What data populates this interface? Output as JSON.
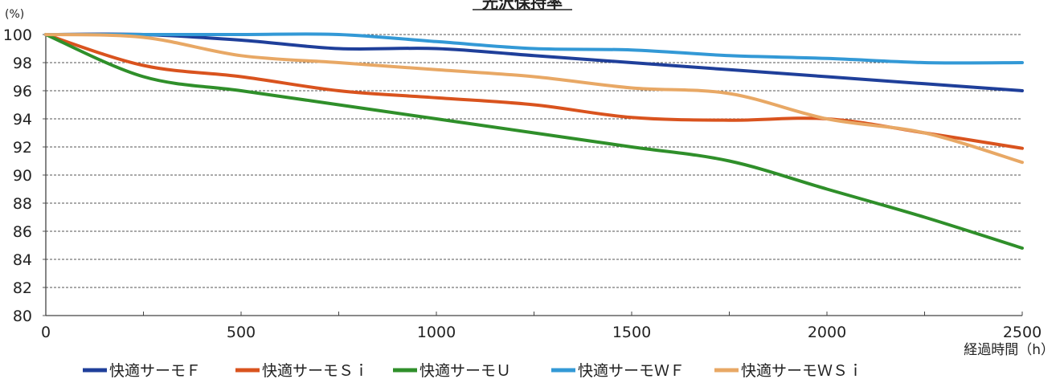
{
  "chart_data": {
    "type": "line",
    "title": "光沢保持率",
    "ylabel": "(%)",
    "xlabel": "経過時間（h）",
    "xlim": [
      0,
      2500
    ],
    "ylim": [
      80,
      100
    ],
    "x_ticks": [
      0,
      500,
      1000,
      1500,
      2000,
      2500
    ],
    "y_ticks": [
      80,
      82,
      84,
      86,
      88,
      90,
      92,
      94,
      96,
      98,
      100
    ],
    "grid": "horizontal-dashed",
    "legend_position": "bottom",
    "series": [
      {
        "name": "快適サーモＦ",
        "color": "#1f3f9a",
        "points": [
          [
            0,
            100
          ],
          [
            250,
            100
          ],
          [
            500,
            99.6
          ],
          [
            750,
            99.0
          ],
          [
            1000,
            99.0
          ],
          [
            1250,
            98.5
          ],
          [
            1500,
            98.0
          ],
          [
            1750,
            97.5
          ],
          [
            2000,
            97.0
          ],
          [
            2250,
            96.5
          ],
          [
            2500,
            96.0
          ]
        ]
      },
      {
        "name": "快適サーモＳｉ",
        "color": "#d9531e",
        "points": [
          [
            0,
            100
          ],
          [
            250,
            97.8
          ],
          [
            500,
            97.0
          ],
          [
            750,
            96.0
          ],
          [
            1000,
            95.5
          ],
          [
            1250,
            95.0
          ],
          [
            1500,
            94.1
          ],
          [
            1750,
            93.9
          ],
          [
            2000,
            94.0
          ],
          [
            2250,
            93.0
          ],
          [
            2500,
            91.9
          ]
        ]
      },
      {
        "name": "快適サーモＵ",
        "color": "#2f8f2a",
        "points": [
          [
            0,
            100
          ],
          [
            250,
            97.0
          ],
          [
            500,
            96.0
          ],
          [
            750,
            95.0
          ],
          [
            1000,
            94.0
          ],
          [
            1250,
            93.0
          ],
          [
            1500,
            92.0
          ],
          [
            1750,
            91.0
          ],
          [
            2000,
            89.0
          ],
          [
            2250,
            87.0
          ],
          [
            2500,
            84.8
          ]
        ]
      },
      {
        "name": "快適サーモＷＦ",
        "color": "#3399d6",
        "points": [
          [
            0,
            100
          ],
          [
            250,
            100
          ],
          [
            500,
            100
          ],
          [
            750,
            100
          ],
          [
            1000,
            99.5
          ],
          [
            1250,
            99.0
          ],
          [
            1500,
            98.9
          ],
          [
            1750,
            98.5
          ],
          [
            2000,
            98.3
          ],
          [
            2250,
            98.0
          ],
          [
            2500,
            98.0
          ]
        ]
      },
      {
        "name": "快適サーモＷＳｉ",
        "color": "#e8a865",
        "points": [
          [
            0,
            100
          ],
          [
            250,
            99.8
          ],
          [
            500,
            98.5
          ],
          [
            750,
            98.0
          ],
          [
            1000,
            97.5
          ],
          [
            1250,
            97.0
          ],
          [
            1500,
            96.2
          ],
          [
            1750,
            95.8
          ],
          [
            2000,
            94.0
          ],
          [
            2250,
            93.0
          ],
          [
            2500,
            90.9
          ]
        ]
      }
    ]
  }
}
